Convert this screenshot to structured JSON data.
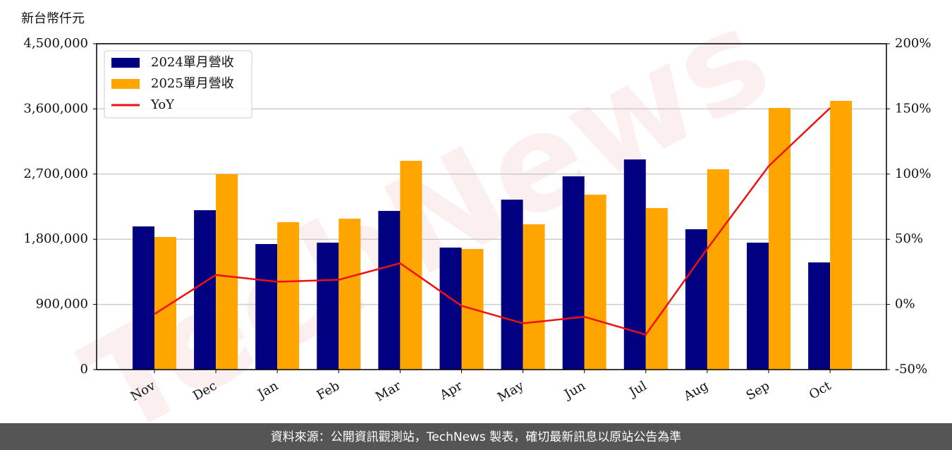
{
  "chart_data": {
    "type": "bar_line",
    "y_label": "新台幣仟元",
    "watermark": "TechNews",
    "source": "資料來源：公開資訊觀測站，TechNews 製表，確切最新訊息以原站公告為準",
    "categories": [
      "Nov",
      "Dec",
      "Jan",
      "Feb",
      "Mar",
      "Apr",
      "May",
      "Jun",
      "Jul",
      "Aug",
      "Sep",
      "Oct"
    ],
    "series": [
      {
        "name": "2024單月營收",
        "color": "#000080",
        "type": "bar",
        "values": [
          1977000,
          2201000,
          1734000,
          1753000,
          2191000,
          1685000,
          2347000,
          2669000,
          2902000,
          1938000,
          1753000,
          1480000
        ]
      },
      {
        "name": "2025單月營收",
        "color": "#ffa500",
        "type": "bar",
        "values": [
          1831000,
          2698000,
          2036000,
          2084000,
          2883000,
          1666000,
          2006000,
          2416000,
          2230000,
          2766000,
          3613000,
          3711000
        ]
      },
      {
        "name": "YoY",
        "color": "#ee1111",
        "type": "line",
        "axis": "y2",
        "values": [
          -7.4,
          22.6,
          17.4,
          18.9,
          31.6,
          -1.1,
          -14.5,
          -9.5,
          -23.2,
          42.7,
          106.1,
          150.7
        ]
      }
    ],
    "ylim": [
      0,
      4500000
    ],
    "yticks": [
      0,
      {
        "value": 900000,
        "label": "900,000"
      },
      {
        "value": 1800000,
        "label": "1,800,000"
      },
      {
        "value": 2700000,
        "label": "2,700,000"
      },
      {
        "value": 3600000,
        "label": "3,600,000"
      },
      {
        "value": 4500000,
        "label": "4,500,000"
      }
    ],
    "y2lim": [
      -50,
      200
    ],
    "y2ticks": [
      {
        "value": -50,
        "label": "-50%"
      },
      {
        "value": 0,
        "label": "0%"
      },
      {
        "value": 50,
        "label": "50%"
      },
      {
        "value": 100,
        "label": "100%"
      },
      {
        "value": 150,
        "label": "150%"
      },
      {
        "value": 200,
        "label": "200%"
      }
    ],
    "grid": true,
    "legend": "upper-left"
  }
}
